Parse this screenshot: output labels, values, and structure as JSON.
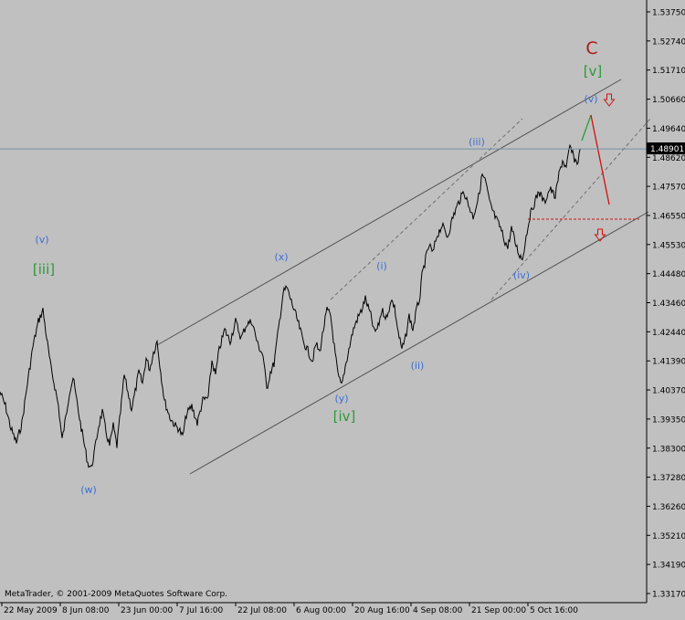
{
  "chart_data": {
    "type": "line",
    "title": "",
    "watermark": "MetaTrader, © 2001-2009 MetaQuotes Software Corp.",
    "current_price_label": "1.48901",
    "y_ticks": [
      "1.53750",
      "1.52740",
      "1.51710",
      "1.50660",
      "1.49640",
      "1.48620",
      "1.47570",
      "1.46550",
      "1.45530",
      "1.44480",
      "1.43460",
      "1.42440",
      "1.41390",
      "1.40370",
      "1.39350",
      "1.38300",
      "1.37280",
      "1.36260",
      "1.35210",
      "1.34190",
      "1.33170"
    ],
    "x_ticks": [
      "22 May 2009",
      "8 Jun 08:00",
      "23 Jun 00:00",
      "7 Jul 16:00",
      "22 Jul 08:00",
      "6 Aug 00:00",
      "20 Aug 16:00",
      "4 Sep 08:00",
      "21 Sep 00:00",
      "5 Oct 16:00"
    ],
    "ylim": [
      1.3317,
      1.5375
    ],
    "grid": false,
    "wave_labels": [
      {
        "text": "[iii]",
        "color": "green"
      },
      {
        "text": "(v)",
        "color": "blue"
      },
      {
        "text": "(w)",
        "color": "blue"
      },
      {
        "text": "(x)",
        "color": "blue"
      },
      {
        "text": "(y)",
        "color": "blue"
      },
      {
        "text": "[iv]",
        "color": "green"
      },
      {
        "text": "(i)",
        "color": "blue"
      },
      {
        "text": "(ii)",
        "color": "blue"
      },
      {
        "text": "(iii)",
        "color": "blue"
      },
      {
        "text": "(iv)",
        "color": "blue"
      },
      {
        "text": "(v)",
        "color": "blue"
      },
      {
        "text": "[v]",
        "color": "green"
      },
      {
        "text": "C",
        "color": "red"
      }
    ],
    "series": [
      {
        "points": [
          [
            0,
            1.403
          ],
          [
            6,
            1.398
          ],
          [
            12,
            1.39
          ],
          [
            18,
            1.385
          ],
          [
            24,
            1.392
          ],
          [
            30,
            1.406
          ],
          [
            36,
            1.419
          ],
          [
            42,
            1.428
          ],
          [
            47,
            1.432
          ],
          [
            52,
            1.42
          ],
          [
            56,
            1.411
          ],
          [
            60,
            1.405
          ],
          [
            64,
            1.398
          ],
          [
            68,
            1.386
          ],
          [
            72,
            1.394
          ],
          [
            76,
            1.403
          ],
          [
            80,
            1.408
          ],
          [
            84,
            1.4
          ],
          [
            88,
            1.392
          ],
          [
            92,
            1.385
          ],
          [
            96,
            1.378
          ],
          [
            100,
            1.376
          ],
          [
            104,
            1.383
          ],
          [
            108,
            1.391
          ],
          [
            112,
            1.396
          ],
          [
            116,
            1.389
          ],
          [
            120,
            1.384
          ],
          [
            124,
            1.391
          ],
          [
            128,
            1.384
          ],
          [
            132,
            1.396
          ],
          [
            136,
            1.409
          ],
          [
            140,
            1.403
          ],
          [
            144,
            1.397
          ],
          [
            148,
            1.403
          ],
          [
            152,
            1.41
          ],
          [
            156,
            1.406
          ],
          [
            160,
            1.415
          ],
          [
            164,
            1.411
          ],
          [
            168,
            1.417
          ],
          [
            172,
            1.421
          ],
          [
            176,
            1.41
          ],
          [
            180,
            1.4
          ],
          [
            186,
            1.394
          ],
          [
            192,
            1.391
          ],
          [
            196,
            1.39
          ],
          [
            200,
            1.387
          ],
          [
            204,
            1.395
          ],
          [
            210,
            1.398
          ],
          [
            216,
            1.392
          ],
          [
            222,
            1.4
          ],
          [
            228,
            1.401
          ],
          [
            232,
            1.414
          ],
          [
            236,
            1.409
          ],
          [
            240,
            1.418
          ],
          [
            246,
            1.425
          ],
          [
            252,
            1.421
          ],
          [
            258,
            1.428
          ],
          [
            264,
            1.422
          ],
          [
            270,
            1.427
          ],
          [
            276,
            1.428
          ],
          [
            282,
            1.42
          ],
          [
            288,
            1.416
          ],
          [
            292,
            1.404
          ],
          [
            296,
            1.41
          ],
          [
            300,
            1.413
          ],
          [
            306,
            1.428
          ],
          [
            310,
            1.438
          ],
          [
            314,
            1.44
          ],
          [
            318,
            1.436
          ],
          [
            322,
            1.432
          ],
          [
            326,
            1.428
          ],
          [
            332,
            1.421
          ],
          [
            338,
            1.417
          ],
          [
            342,
            1.414
          ],
          [
            346,
            1.42
          ],
          [
            350,
            1.417
          ],
          [
            354,
            1.425
          ],
          [
            358,
            1.432
          ],
          [
            362,
            1.43
          ],
          [
            366,
            1.419
          ],
          [
            370,
            1.409
          ],
          [
            374,
            1.405
          ],
          [
            378,
            1.412
          ],
          [
            382,
            1.418
          ],
          [
            386,
            1.424
          ],
          [
            390,
            1.428
          ],
          [
            396,
            1.432
          ],
          [
            400,
            1.436
          ],
          [
            406,
            1.43
          ],
          [
            410,
            1.424
          ],
          [
            414,
            1.426
          ],
          [
            418,
            1.432
          ],
          [
            424,
            1.429
          ],
          [
            428,
            1.436
          ],
          [
            432,
            1.433
          ],
          [
            436,
            1.424
          ],
          [
            440,
            1.418
          ],
          [
            444,
            1.422
          ],
          [
            448,
            1.43
          ],
          [
            452,
            1.425
          ],
          [
            456,
            1.432
          ],
          [
            460,
            1.437
          ],
          [
            462,
            1.444
          ],
          [
            466,
            1.45
          ],
          [
            470,
            1.455
          ],
          [
            474,
            1.452
          ],
          [
            478,
            1.458
          ],
          [
            484,
            1.462
          ],
          [
            490,
            1.458
          ],
          [
            496,
            1.465
          ],
          [
            502,
            1.47
          ],
          [
            508,
            1.474
          ],
          [
            512,
            1.47
          ],
          [
            518,
            1.465
          ],
          [
            524,
            1.472
          ],
          [
            528,
            1.48
          ],
          [
            532,
            1.477
          ],
          [
            536,
            1.47
          ],
          [
            542,
            1.465
          ],
          [
            548,
            1.461
          ],
          [
            552,
            1.457
          ],
          [
            556,
            1.454
          ],
          [
            560,
            1.461
          ],
          [
            564,
            1.456
          ],
          [
            568,
            1.452
          ],
          [
            572,
            1.45
          ],
          [
            576,
            1.458
          ],
          [
            580,
            1.465
          ],
          [
            584,
            1.469
          ],
          [
            590,
            1.474
          ],
          [
            596,
            1.47
          ],
          [
            602,
            1.475
          ],
          [
            608,
            1.472
          ],
          [
            612,
            1.48
          ],
          [
            616,
            1.485
          ],
          [
            620,
            1.482
          ],
          [
            624,
            1.49
          ],
          [
            628,
            1.486
          ],
          [
            632,
            1.484
          ],
          [
            636,
            1.489
          ]
        ]
      }
    ]
  }
}
